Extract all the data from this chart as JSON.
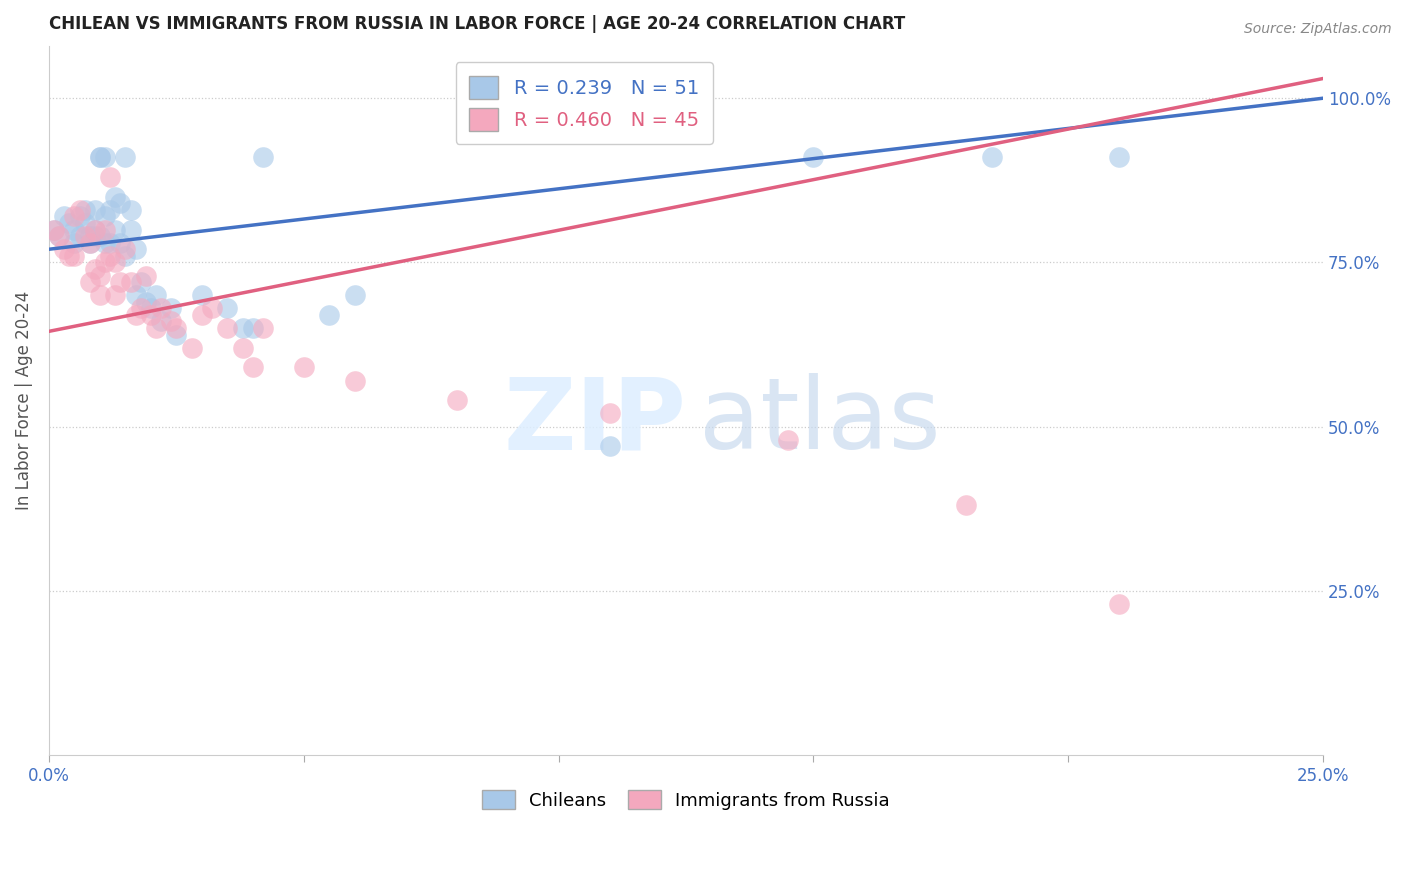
{
  "title": "CHILEAN VS IMMIGRANTS FROM RUSSIA IN LABOR FORCE | AGE 20-24 CORRELATION CHART",
  "source": "Source: ZipAtlas.com",
  "ylabel": "In Labor Force | Age 20-24",
  "xlim": [
    0.0,
    0.25
  ],
  "ylim": [
    0.0,
    1.08
  ],
  "xtick_positions": [
    0.0,
    0.05,
    0.1,
    0.15,
    0.2,
    0.25
  ],
  "xticklabels": [
    "0.0%",
    "",
    "",
    "",
    "",
    "25.0%"
  ],
  "ytick_positions": [
    0.25,
    0.5,
    0.75,
    1.0
  ],
  "yticklabels": [
    "25.0%",
    "50.0%",
    "75.0%",
    "100.0%"
  ],
  "blue_R": 0.239,
  "blue_N": 51,
  "pink_R": 0.46,
  "pink_N": 45,
  "blue_color": "#a8c8e8",
  "pink_color": "#f4a8be",
  "line_blue": "#4472c4",
  "line_pink": "#e06080",
  "chileans_x": [
    0.001,
    0.002,
    0.003,
    0.004,
    0.005,
    0.005,
    0.006,
    0.006,
    0.007,
    0.007,
    0.008,
    0.008,
    0.009,
    0.009,
    0.009,
    0.01,
    0.01,
    0.01,
    0.011,
    0.011,
    0.011,
    0.012,
    0.012,
    0.013,
    0.013,
    0.014,
    0.014,
    0.015,
    0.015,
    0.016,
    0.016,
    0.017,
    0.017,
    0.018,
    0.019,
    0.02,
    0.021,
    0.022,
    0.024,
    0.025,
    0.03,
    0.035,
    0.038,
    0.04,
    0.042,
    0.055,
    0.06,
    0.11,
    0.15,
    0.185,
    0.21
  ],
  "chileans_y": [
    0.8,
    0.79,
    0.82,
    0.81,
    0.78,
    0.8,
    0.79,
    0.82,
    0.83,
    0.81,
    0.79,
    0.78,
    0.8,
    0.83,
    0.79,
    0.91,
    0.91,
    0.79,
    0.91,
    0.78,
    0.82,
    0.83,
    0.78,
    0.85,
    0.8,
    0.84,
    0.78,
    0.91,
    0.76,
    0.83,
    0.8,
    0.7,
    0.77,
    0.72,
    0.69,
    0.68,
    0.7,
    0.66,
    0.68,
    0.64,
    0.7,
    0.68,
    0.65,
    0.65,
    0.91,
    0.67,
    0.7,
    0.47,
    0.91,
    0.91,
    0.91
  ],
  "russia_x": [
    0.001,
    0.002,
    0.003,
    0.004,
    0.005,
    0.005,
    0.006,
    0.007,
    0.008,
    0.008,
    0.009,
    0.009,
    0.01,
    0.01,
    0.011,
    0.011,
    0.012,
    0.012,
    0.013,
    0.013,
    0.014,
    0.015,
    0.016,
    0.017,
    0.018,
    0.019,
    0.02,
    0.021,
    0.022,
    0.024,
    0.025,
    0.028,
    0.03,
    0.032,
    0.035,
    0.038,
    0.04,
    0.042,
    0.05,
    0.06,
    0.08,
    0.11,
    0.145,
    0.18,
    0.21
  ],
  "russia_y": [
    0.8,
    0.79,
    0.77,
    0.76,
    0.82,
    0.76,
    0.83,
    0.79,
    0.72,
    0.78,
    0.8,
    0.74,
    0.73,
    0.7,
    0.75,
    0.8,
    0.88,
    0.76,
    0.75,
    0.7,
    0.72,
    0.77,
    0.72,
    0.67,
    0.68,
    0.73,
    0.67,
    0.65,
    0.68,
    0.66,
    0.65,
    0.62,
    0.67,
    0.68,
    0.65,
    0.62,
    0.59,
    0.65,
    0.59,
    0.57,
    0.54,
    0.52,
    0.48,
    0.38,
    0.23
  ]
}
